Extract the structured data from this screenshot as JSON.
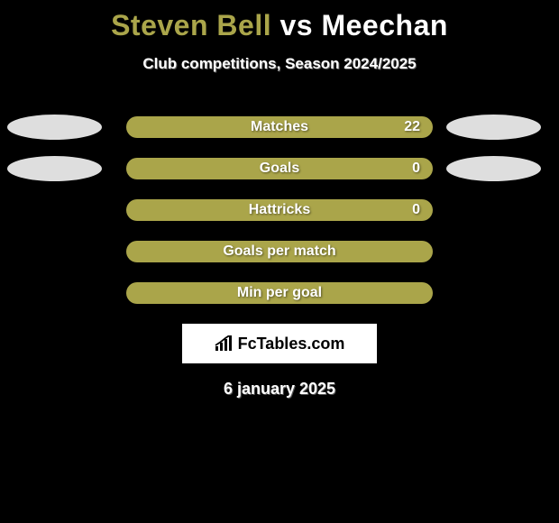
{
  "header": {
    "player1": "Steven Bell",
    "vs_text": "vs",
    "player2": "Meechan",
    "player1_color": "#aaa54a",
    "player2_color": "#ffffff",
    "vs_color": "#ffffff"
  },
  "subtitle": "Club competitions, Season 2024/2025",
  "bar_colors": {
    "player1": "#aaa54a",
    "player2": "#ffffff",
    "ellipse_player1": "#dedede",
    "ellipse_player2": "#dedede"
  },
  "stats": [
    {
      "label": "Matches",
      "value": "22",
      "fill": "player1",
      "show_left_ellipse": true,
      "show_right_ellipse": true
    },
    {
      "label": "Goals",
      "value": "0",
      "fill": "player1",
      "show_left_ellipse": true,
      "show_right_ellipse": true
    },
    {
      "label": "Hattricks",
      "value": "0",
      "fill": "player1",
      "show_left_ellipse": false,
      "show_right_ellipse": false
    },
    {
      "label": "Goals per match",
      "value": "",
      "fill": "player1",
      "show_left_ellipse": false,
      "show_right_ellipse": false
    },
    {
      "label": "Min per goal",
      "value": "",
      "fill": "player1",
      "show_left_ellipse": false,
      "show_right_ellipse": false
    }
  ],
  "logo": {
    "brand": "FcTables.com"
  },
  "date": "6 january 2025",
  "background_color": "#000000"
}
